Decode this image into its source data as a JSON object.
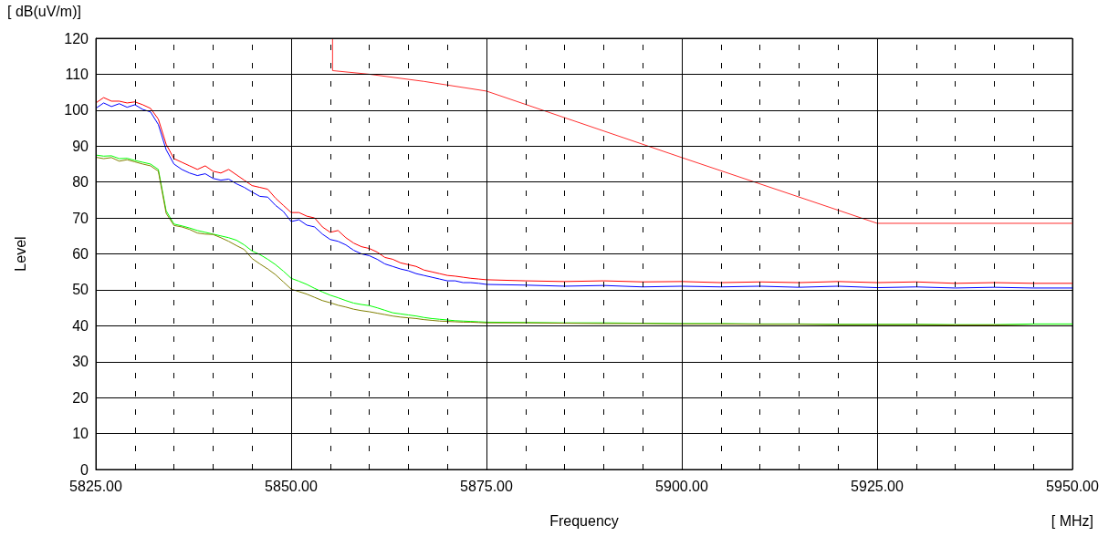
{
  "chart_data": {
    "type": "line",
    "xlabel": "Frequency",
    "ylabel": "Level",
    "annotations": [
      "[ dB(uV/m)]",
      "[ MHz]"
    ],
    "x": [
      5825,
      5826,
      5827,
      5828,
      5829,
      5830,
      5831,
      5832,
      5833,
      5834,
      5835,
      5836,
      5837,
      5838,
      5839,
      5840,
      5841,
      5842,
      5843,
      5844,
      5845,
      5846,
      5847,
      5848,
      5849,
      5850,
      5851,
      5852,
      5853,
      5854,
      5855,
      5856,
      5857,
      5858,
      5859,
      5860,
      5861,
      5862,
      5863,
      5864,
      5865,
      5866,
      5867,
      5868,
      5869,
      5870,
      5871,
      5872,
      5873,
      5874,
      5875,
      5880,
      5885,
      5890,
      5895,
      5900,
      5905,
      5910,
      5915,
      5920,
      5925,
      5930,
      5935,
      5940,
      5945,
      5950
    ],
    "series": [
      {
        "color": "#ff0000",
        "values": [
          102,
          103.5,
          102.5,
          102.5,
          102,
          102.3,
          101.5,
          100.5,
          97.5,
          90.5,
          86.5,
          85.5,
          84.5,
          83.5,
          84.5,
          83,
          82.5,
          83.5,
          82,
          80.5,
          79,
          78.5,
          78,
          75.5,
          73.5,
          71.5,
          71.5,
          70.5,
          70,
          67.5,
          66,
          66.5,
          64.5,
          63,
          62,
          61.5,
          60.5,
          59,
          58.5,
          57.5,
          57,
          56.5,
          55.5,
          55,
          54.5,
          54,
          53.8,
          53.5,
          53.2,
          53,
          52.8,
          52.5,
          52.3,
          52.5,
          52.2,
          52.3,
          52,
          52.2,
          52,
          52.3,
          52,
          52.2,
          51.8,
          52,
          51.8,
          51.8
        ]
      },
      {
        "color": "#0000ff",
        "values": [
          100.5,
          102,
          101,
          101.8,
          100.8,
          101.5,
          100.2,
          99.5,
          96,
          89,
          85,
          83.5,
          82.5,
          81.8,
          82.3,
          81,
          80.5,
          80.8,
          79.5,
          78.5,
          77.2,
          76,
          75.8,
          73.5,
          71.8,
          69,
          69.5,
          68,
          67.5,
          65.5,
          64,
          63.5,
          62.5,
          61,
          60,
          59.5,
          58.5,
          57.2,
          56.5,
          55.8,
          55.3,
          54.5,
          54,
          53.5,
          53,
          52.5,
          52.5,
          52,
          52,
          51.8,
          51.5,
          51.3,
          51,
          51.2,
          50.8,
          51,
          50.8,
          51,
          50.7,
          51,
          50.6,
          50.8,
          50.5,
          50.7,
          50.5,
          50.5
        ]
      },
      {
        "color": "#00ff00",
        "values": [
          87.5,
          87.2,
          87.3,
          86.5,
          86.6,
          86,
          85.5,
          85,
          83.5,
          72,
          68.3,
          67.8,
          67.2,
          66.5,
          66,
          65.5,
          65,
          64.5,
          63.8,
          62.5,
          60.8,
          59.8,
          58.5,
          57,
          55.2,
          53.2,
          52.4,
          51.5,
          50.4,
          49.4,
          48.5,
          47.8,
          47,
          46.3,
          45.9,
          45.6,
          45,
          44.3,
          43.6,
          43.3,
          43,
          42.7,
          42.3,
          42,
          41.8,
          41.6,
          41.4,
          41.3,
          41.2,
          41.1,
          41,
          40.9,
          40.8,
          40.8,
          40.7,
          40.6,
          40.6,
          40.5,
          40.5,
          40.4,
          40.4,
          40.4,
          40.3,
          40.3,
          40.5,
          40.5
        ]
      },
      {
        "color": "#808000",
        "values": [
          86.9,
          86.5,
          86.8,
          85.8,
          86.2,
          85.6,
          85,
          84.5,
          83,
          71.3,
          67.9,
          67.5,
          66.8,
          65.8,
          65.5,
          65.4,
          64.5,
          63.5,
          62.3,
          61.2,
          58.7,
          57.2,
          55.8,
          54.2,
          52.2,
          50.2,
          49.5,
          48.8,
          47.9,
          47,
          46.4,
          45.7,
          45.2,
          44.6,
          44.2,
          43.9,
          43.5,
          43.1,
          42.7,
          42.4,
          42.2,
          42,
          41.7,
          41.5,
          41.3,
          41.2,
          41.1,
          41,
          41,
          40.9,
          40.8,
          40.8,
          40.7,
          40.6,
          40.6,
          40.5,
          40.5,
          40.4,
          40.4,
          40.3,
          40.3,
          40.3,
          40.2,
          40.2,
          40.0,
          40.0
        ]
      },
      {
        "color": "#ff3030",
        "x": [
          5855.3,
          5855.3,
          5860,
          5867,
          5875,
          5900,
          5925,
          5950
        ],
        "values": [
          120,
          111,
          110,
          108,
          105.3,
          86.8,
          68.5,
          68.5
        ]
      }
    ],
    "xlim": [
      5825,
      5950
    ],
    "xticks": [
      {
        "value": 5825,
        "label": "5825.00"
      },
      {
        "value": 5830,
        "label": null
      },
      {
        "value": 5835,
        "label": null
      },
      {
        "value": 5840,
        "label": null
      },
      {
        "value": 5845,
        "label": null
      },
      {
        "value": 5850,
        "label": "5850.00"
      },
      {
        "value": 5855,
        "label": null
      },
      {
        "value": 5860,
        "label": null
      },
      {
        "value": 5865,
        "label": null
      },
      {
        "value": 5870,
        "label": null
      },
      {
        "value": 5875,
        "label": "5875.00"
      },
      {
        "value": 5880,
        "label": null
      },
      {
        "value": 5885,
        "label": null
      },
      {
        "value": 5890,
        "label": null
      },
      {
        "value": 5895,
        "label": null
      },
      {
        "value": 5900,
        "label": "5900.00"
      },
      {
        "value": 5905,
        "label": null
      },
      {
        "value": 5910,
        "label": null
      },
      {
        "value": 5915,
        "label": null
      },
      {
        "value": 5920,
        "label": null
      },
      {
        "value": 5925,
        "label": "5925.00"
      },
      {
        "value": 5930,
        "label": null
      },
      {
        "value": 5935,
        "label": null
      },
      {
        "value": 5940,
        "label": null
      },
      {
        "value": 5945,
        "label": null
      },
      {
        "value": 5950,
        "label": "5950.00"
      }
    ],
    "ylim": [
      0,
      120
    ],
    "yticks": [
      0,
      10,
      20,
      30,
      40,
      50,
      60,
      70,
      80,
      90,
      100,
      110,
      120
    ],
    "grid": true,
    "marker": "none",
    "line_style": "solid"
  }
}
